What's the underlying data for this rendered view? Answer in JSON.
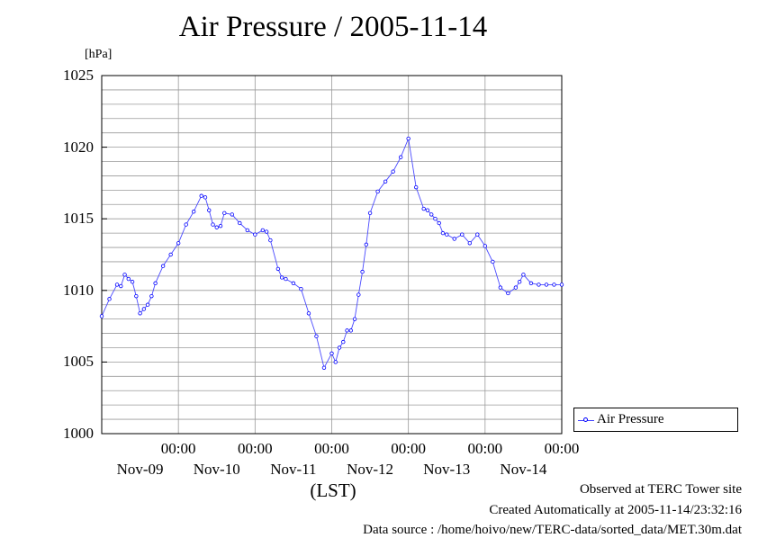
{
  "chart_data": {
    "type": "line",
    "title": "Air Pressure / 2005-11-14",
    "ylabel": "[hPa]",
    "xlabel": "(LST)",
    "ylim": [
      1000,
      1025
    ],
    "yticks": [
      "1025",
      "1020",
      "1015",
      "1010",
      "1005",
      "1000"
    ],
    "ytick_values": [
      1025,
      1020,
      1015,
      1010,
      1005,
      1000
    ],
    "xlim_days": [
      0,
      6
    ],
    "xticks": [
      {
        "time": "00:00",
        "date": "Nov-09"
      },
      {
        "time": "00:00",
        "date": "Nov-10"
      },
      {
        "time": "00:00",
        "date": "Nov-11"
      },
      {
        "time": "00:00",
        "date": "Nov-12"
      },
      {
        "time": "00:00",
        "date": "Nov-13"
      },
      {
        "time": "00:00",
        "date": "Nov-14"
      }
    ],
    "grid": true,
    "legend_position": "right",
    "series": [
      {
        "name": "Air Pressure",
        "color": "#0000ff",
        "x": [
          0.0,
          0.1,
          0.2,
          0.25,
          0.3,
          0.35,
          0.4,
          0.45,
          0.5,
          0.55,
          0.6,
          0.65,
          0.7,
          0.8,
          0.9,
          1.0,
          1.1,
          1.2,
          1.3,
          1.35,
          1.4,
          1.45,
          1.5,
          1.55,
          1.6,
          1.7,
          1.8,
          1.9,
          2.0,
          2.1,
          2.15,
          2.2,
          2.3,
          2.35,
          2.4,
          2.5,
          2.6,
          2.7,
          2.8,
          2.9,
          3.0,
          3.05,
          3.1,
          3.15,
          3.2,
          3.25,
          3.3,
          3.35,
          3.4,
          3.45,
          3.5,
          3.6,
          3.7,
          3.8,
          3.9,
          4.0,
          4.1,
          4.2,
          4.25,
          4.3,
          4.35,
          4.4,
          4.45,
          4.5,
          4.6,
          4.7,
          4.8,
          4.9,
          5.0,
          5.1,
          5.2,
          5.3,
          5.4,
          5.45,
          5.5,
          5.6,
          5.7,
          5.8,
          5.9,
          6.0
        ],
        "y": [
          1008.2,
          1009.4,
          1010.4,
          1010.3,
          1011.1,
          1010.8,
          1010.6,
          1009.6,
          1008.4,
          1008.7,
          1009.0,
          1009.6,
          1010.5,
          1011.7,
          1012.5,
          1013.3,
          1014.6,
          1015.5,
          1016.6,
          1016.5,
          1015.6,
          1014.6,
          1014.4,
          1014.5,
          1015.4,
          1015.3,
          1014.7,
          1014.2,
          1013.9,
          1014.2,
          1014.1,
          1013.5,
          1011.5,
          1010.9,
          1010.8,
          1010.5,
          1010.1,
          1008.4,
          1006.8,
          1004.6,
          1005.6,
          1005.0,
          1006.0,
          1006.4,
          1007.2,
          1007.2,
          1008.0,
          1009.7,
          1011.3,
          1013.2,
          1015.4,
          1016.9,
          1017.6,
          1018.3,
          1019.3,
          1020.6,
          1017.2,
          1015.7,
          1015.6,
          1015.3,
          1015.0,
          1014.7,
          1014.0,
          1013.9,
          1013.6,
          1013.9,
          1013.3,
          1013.9,
          1013.1,
          1012.0,
          1010.2,
          1009.8,
          1010.2,
          1010.6,
          1011.1,
          1010.5,
          1010.4,
          1010.4,
          1010.4,
          1010.4
        ]
      }
    ]
  },
  "legend": {
    "label": "Air Pressure"
  },
  "footer": {
    "site": "Observed at TERC Tower site",
    "created": "Created Automatically at 2005-11-14/23:32:16",
    "source": "Data source : /home/hoivo/new/TERC-data/sorted_data/MET.30m.dat"
  }
}
